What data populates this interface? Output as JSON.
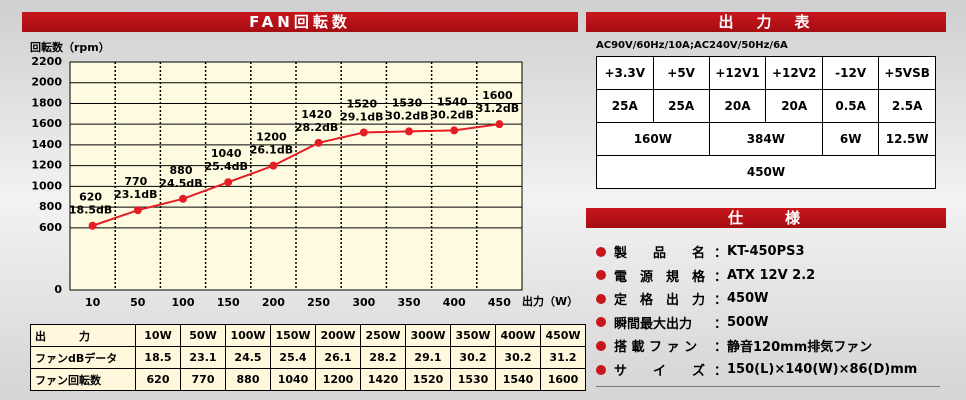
{
  "chart_data": {
    "type": "line",
    "title": "FAN回転数",
    "y_label": "回転数（rpm）",
    "x_label": "出力（W）",
    "categories": [
      "10",
      "50",
      "100",
      "150",
      "200",
      "250",
      "300",
      "350",
      "400",
      "450"
    ],
    "values": [
      620,
      770,
      880,
      1040,
      1200,
      1420,
      1520,
      1530,
      1540,
      1600
    ],
    "annotations": [
      "18.5dB",
      "23.1dB",
      "24.5dB",
      "25.4dB",
      "26.1dB",
      "28.2dB",
      "29.1dB",
      "30.2dB",
      "30.2dB",
      "31.2dB"
    ],
    "color": "#e31e24",
    "ylim": [
      0,
      2200
    ],
    "yticks": [
      0,
      600,
      800,
      1000,
      1200,
      1400,
      1600,
      1800,
      2000,
      2200
    ],
    "grid": true
  },
  "fan_table": {
    "rows": [
      [
        "出　　　力",
        "10W",
        "50W",
        "100W",
        "150W",
        "200W",
        "250W",
        "300W",
        "350W",
        "400W",
        "450W"
      ],
      [
        "ファンdBデータ",
        "18.5",
        "23.1",
        "24.5",
        "25.4",
        "26.1",
        "28.2",
        "29.1",
        "30.2",
        "30.2",
        "31.2"
      ],
      [
        "ファン回転数",
        "620",
        "770",
        "880",
        "1040",
        "1200",
        "1420",
        "1520",
        "1530",
        "1540",
        "1600"
      ]
    ]
  },
  "output_table": {
    "title": "出　力　表",
    "subtitle": "AC90V/60Hz/10A;AC240V/50Hz/6A",
    "headers": [
      "+3.3V",
      "+5V",
      "+12V1",
      "+12V2",
      "-12V",
      "+5VSB"
    ],
    "currents": [
      "25A",
      "25A",
      "20A",
      "20A",
      "0.5A",
      "2.5A"
    ],
    "watts": [
      "160W",
      "384W",
      "6W",
      "12.5W"
    ],
    "total": "450W"
  },
  "spec": {
    "title": "仕　　様",
    "sep": "：",
    "items": [
      {
        "label": "製　　品　　名",
        "value": "KT-450PS3"
      },
      {
        "label": "電　源　規　格",
        "value": "ATX 12V 2.2"
      },
      {
        "label": "定　格　出　力",
        "value": "450W"
      },
      {
        "label": "瞬間最大出力",
        "value": "500W"
      },
      {
        "label": "搭 載 フ ァ ン",
        "value": "静音120mm排気ファン"
      },
      {
        "label": "サ　　イ　　ズ",
        "value": "150(L)×140(W)×86(D)mm"
      }
    ]
  }
}
